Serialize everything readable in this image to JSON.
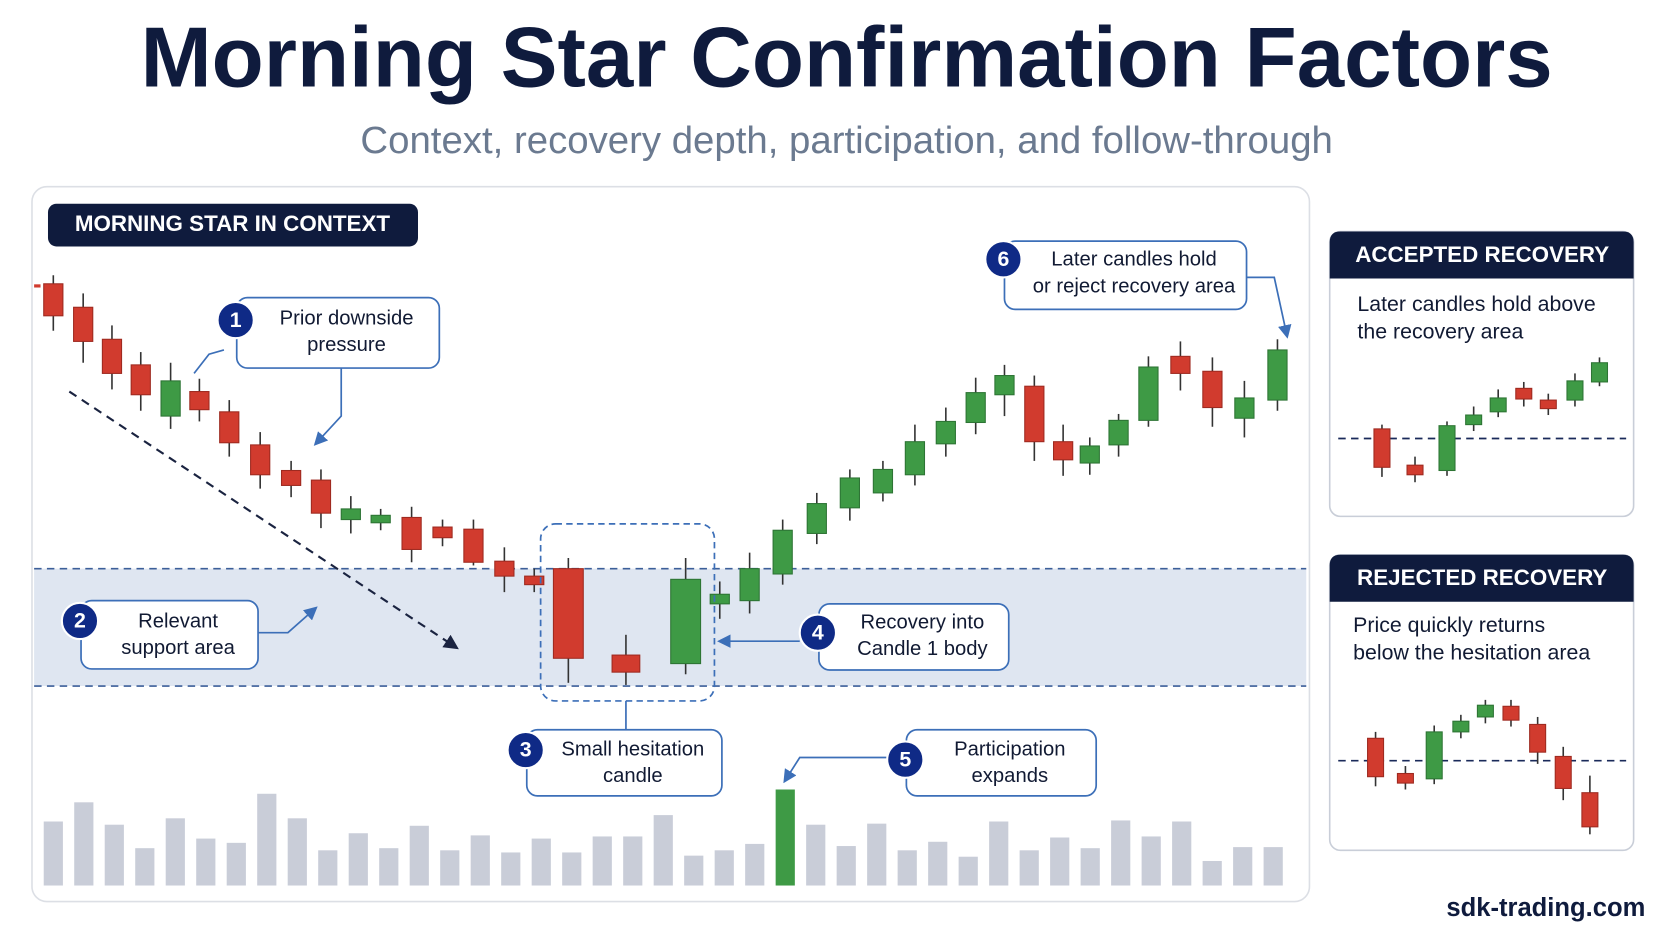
{
  "header": {
    "title": "Morning Star Confirmation Factors",
    "subtitle": "Context, recovery depth, participation, and follow-through"
  },
  "main_panel": {
    "label": "MORNING STAR IN CONTEXT",
    "callouts": [
      {
        "number": "1",
        "lines": [
          "Prior downside",
          "pressure"
        ]
      },
      {
        "number": "2",
        "lines": [
          "Relevant",
          "support area"
        ]
      },
      {
        "number": "3",
        "lines": [
          "Small hesitation",
          "candle"
        ]
      },
      {
        "number": "4",
        "lines": [
          "Recovery into",
          "Candle 1 body"
        ]
      },
      {
        "number": "5",
        "lines": [
          "Participation",
          "expands"
        ]
      },
      {
        "number": "6",
        "lines": [
          "Later candles hold",
          "or reject recovery area"
        ]
      }
    ]
  },
  "side_panels": [
    {
      "title": "ACCEPTED RECOVERY",
      "lines": [
        "Later candles hold above",
        "the recovery area"
      ]
    },
    {
      "title": "REJECTED RECOVERY",
      "lines": [
        "Price quickly returns",
        "below the hesitation area"
      ]
    }
  ],
  "footer": "sdk-trading.com"
}
